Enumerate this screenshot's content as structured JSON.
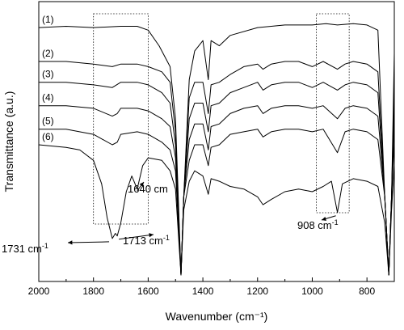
{
  "chart_data": {
    "type": "line",
    "title": "",
    "xlabel": "Wavenumber (cm⁻¹)",
    "ylabel": "Transmittance (a.u.)",
    "xlim": [
      2000,
      700
    ],
    "x_reversed": true,
    "xticks": [
      "2000",
      "1800",
      "1600",
      "1400",
      "1200",
      "1000",
      "800"
    ],
    "y_ticks_shown": false,
    "grid": false,
    "line_color": "#000000",
    "series": [
      {
        "label": "(1)",
        "baseline": 0.95,
        "points": [
          [
            2000,
            0.95
          ],
          [
            1900,
            0.955
          ],
          [
            1800,
            0.95
          ],
          [
            1700,
            0.955
          ],
          [
            1640,
            0.955
          ],
          [
            1600,
            0.94
          ],
          [
            1560,
            0.88
          ],
          [
            1520,
            0.8
          ],
          [
            1500,
            0.6
          ],
          [
            1480,
            0.0
          ],
          [
            1470,
            0.3
          ],
          [
            1450,
            0.75
          ],
          [
            1430,
            0.86
          ],
          [
            1400,
            0.9
          ],
          [
            1380,
            0.75
          ],
          [
            1370,
            0.9
          ],
          [
            1340,
            0.88
          ],
          [
            1300,
            0.92
          ],
          [
            1200,
            0.95
          ],
          [
            1100,
            0.96
          ],
          [
            1000,
            0.96
          ],
          [
            950,
            0.965
          ],
          [
            908,
            0.96
          ],
          [
            850,
            0.965
          ],
          [
            800,
            0.96
          ],
          [
            760,
            0.94
          ],
          [
            735,
            0.3
          ],
          [
            720,
            0.0
          ],
          [
            710,
            0.3
          ],
          [
            700,
            0.85
          ]
        ]
      },
      {
        "label": "(2)",
        "baseline": 0.82,
        "points": [
          [
            2000,
            0.82
          ],
          [
            1900,
            0.82
          ],
          [
            1800,
            0.81
          ],
          [
            1731,
            0.8
          ],
          [
            1700,
            0.81
          ],
          [
            1640,
            0.81
          ],
          [
            1600,
            0.8
          ],
          [
            1550,
            0.78
          ],
          [
            1520,
            0.74
          ],
          [
            1500,
            0.55
          ],
          [
            1480,
            0.0
          ],
          [
            1470,
            0.3
          ],
          [
            1450,
            0.68
          ],
          [
            1430,
            0.74
          ],
          [
            1400,
            0.74
          ],
          [
            1380,
            0.62
          ],
          [
            1370,
            0.73
          ],
          [
            1340,
            0.74
          ],
          [
            1300,
            0.77
          ],
          [
            1250,
            0.8
          ],
          [
            1200,
            0.81
          ],
          [
            1180,
            0.79
          ],
          [
            1150,
            0.81
          ],
          [
            1100,
            0.82
          ],
          [
            1050,
            0.82
          ],
          [
            1000,
            0.8
          ],
          [
            960,
            0.82
          ],
          [
            908,
            0.79
          ],
          [
            880,
            0.81
          ],
          [
            850,
            0.82
          ],
          [
            800,
            0.81
          ],
          [
            760,
            0.78
          ],
          [
            735,
            0.3
          ],
          [
            720,
            0.0
          ],
          [
            710,
            0.3
          ],
          [
            700,
            0.75
          ]
        ]
      },
      {
        "label": "(3)",
        "baseline": 0.74,
        "points": [
          [
            2000,
            0.74
          ],
          [
            1900,
            0.74
          ],
          [
            1800,
            0.73
          ],
          [
            1731,
            0.72
          ],
          [
            1700,
            0.74
          ],
          [
            1640,
            0.74
          ],
          [
            1600,
            0.73
          ],
          [
            1550,
            0.7
          ],
          [
            1520,
            0.66
          ],
          [
            1500,
            0.5
          ],
          [
            1480,
            0.0
          ],
          [
            1470,
            0.3
          ],
          [
            1450,
            0.6
          ],
          [
            1430,
            0.66
          ],
          [
            1400,
            0.66
          ],
          [
            1380,
            0.55
          ],
          [
            1370,
            0.65
          ],
          [
            1340,
            0.66
          ],
          [
            1300,
            0.7
          ],
          [
            1250,
            0.72
          ],
          [
            1200,
            0.74
          ],
          [
            1180,
            0.71
          ],
          [
            1150,
            0.73
          ],
          [
            1100,
            0.74
          ],
          [
            1050,
            0.74
          ],
          [
            1000,
            0.72
          ],
          [
            960,
            0.74
          ],
          [
            908,
            0.71
          ],
          [
            880,
            0.73
          ],
          [
            850,
            0.74
          ],
          [
            800,
            0.73
          ],
          [
            760,
            0.7
          ],
          [
            735,
            0.3
          ],
          [
            720,
            0.0
          ],
          [
            710,
            0.3
          ],
          [
            700,
            0.68
          ]
        ]
      },
      {
        "label": "(4)",
        "baseline": 0.65,
        "points": [
          [
            2000,
            0.65
          ],
          [
            1900,
            0.65
          ],
          [
            1800,
            0.64
          ],
          [
            1731,
            0.61
          ],
          [
            1713,
            0.62
          ],
          [
            1700,
            0.64
          ],
          [
            1640,
            0.64
          ],
          [
            1600,
            0.63
          ],
          [
            1550,
            0.6
          ],
          [
            1520,
            0.57
          ],
          [
            1500,
            0.45
          ],
          [
            1480,
            0.0
          ],
          [
            1470,
            0.3
          ],
          [
            1450,
            0.52
          ],
          [
            1430,
            0.58
          ],
          [
            1400,
            0.58
          ],
          [
            1380,
            0.48
          ],
          [
            1370,
            0.57
          ],
          [
            1340,
            0.58
          ],
          [
            1300,
            0.62
          ],
          [
            1250,
            0.64
          ],
          [
            1200,
            0.65
          ],
          [
            1180,
            0.62
          ],
          [
            1150,
            0.64
          ],
          [
            1100,
            0.65
          ],
          [
            1050,
            0.65
          ],
          [
            1000,
            0.64
          ],
          [
            960,
            0.65
          ],
          [
            908,
            0.6
          ],
          [
            880,
            0.64
          ],
          [
            850,
            0.65
          ],
          [
            800,
            0.64
          ],
          [
            760,
            0.61
          ],
          [
            735,
            0.3
          ],
          [
            720,
            0.0
          ],
          [
            710,
            0.3
          ],
          [
            700,
            0.6
          ]
        ]
      },
      {
        "label": "(5)",
        "baseline": 0.56,
        "points": [
          [
            2000,
            0.56
          ],
          [
            1900,
            0.56
          ],
          [
            1800,
            0.54
          ],
          [
            1731,
            0.5
          ],
          [
            1713,
            0.51
          ],
          [
            1700,
            0.54
          ],
          [
            1640,
            0.55
          ],
          [
            1600,
            0.54
          ],
          [
            1550,
            0.51
          ],
          [
            1520,
            0.48
          ],
          [
            1500,
            0.4
          ],
          [
            1480,
            0.0
          ],
          [
            1470,
            0.3
          ],
          [
            1450,
            0.44
          ],
          [
            1430,
            0.5
          ],
          [
            1400,
            0.5
          ],
          [
            1380,
            0.42
          ],
          [
            1370,
            0.49
          ],
          [
            1340,
            0.5
          ],
          [
            1300,
            0.54
          ],
          [
            1250,
            0.55
          ],
          [
            1200,
            0.56
          ],
          [
            1180,
            0.53
          ],
          [
            1150,
            0.55
          ],
          [
            1100,
            0.56
          ],
          [
            1050,
            0.56
          ],
          [
            1000,
            0.55
          ],
          [
            960,
            0.56
          ],
          [
            908,
            0.47
          ],
          [
            880,
            0.55
          ],
          [
            850,
            0.56
          ],
          [
            800,
            0.55
          ],
          [
            760,
            0.52
          ],
          [
            735,
            0.3
          ],
          [
            720,
            0.0
          ],
          [
            710,
            0.3
          ],
          [
            700,
            0.52
          ]
        ]
      },
      {
        "label": "(6)",
        "baseline": 0.5,
        "points": [
          [
            2000,
            0.5
          ],
          [
            1900,
            0.49
          ],
          [
            1850,
            0.48
          ],
          [
            1800,
            0.44
          ],
          [
            1770,
            0.35
          ],
          [
            1750,
            0.22
          ],
          [
            1731,
            0.14
          ],
          [
            1720,
            0.16
          ],
          [
            1713,
            0.15
          ],
          [
            1700,
            0.2
          ],
          [
            1680,
            0.32
          ],
          [
            1660,
            0.38
          ],
          [
            1640,
            0.33
          ],
          [
            1620,
            0.42
          ],
          [
            1600,
            0.45
          ],
          [
            1550,
            0.44
          ],
          [
            1520,
            0.4
          ],
          [
            1500,
            0.33
          ],
          [
            1480,
            0.0
          ],
          [
            1470,
            0.25
          ],
          [
            1450,
            0.36
          ],
          [
            1430,
            0.4
          ],
          [
            1400,
            0.38
          ],
          [
            1380,
            0.31
          ],
          [
            1370,
            0.37
          ],
          [
            1340,
            0.36
          ],
          [
            1300,
            0.34
          ],
          [
            1250,
            0.33
          ],
          [
            1200,
            0.3
          ],
          [
            1180,
            0.27
          ],
          [
            1150,
            0.29
          ],
          [
            1100,
            0.32
          ],
          [
            1050,
            0.33
          ],
          [
            1000,
            0.32
          ],
          [
            960,
            0.34
          ],
          [
            930,
            0.36
          ],
          [
            908,
            0.24
          ],
          [
            890,
            0.35
          ],
          [
            850,
            0.37
          ],
          [
            800,
            0.36
          ],
          [
            760,
            0.34
          ],
          [
            735,
            0.2
          ],
          [
            720,
            0.0
          ],
          [
            710,
            0.25
          ],
          [
            700,
            0.42
          ]
        ]
      }
    ],
    "annotations": [
      {
        "text": "1731 cm",
        "sup": "-1",
        "arrow_to": [
          1731,
          0.14
        ]
      },
      {
        "text": "1713 cm",
        "sup": "-1",
        "arrow_to": [
          1713,
          0.15
        ]
      },
      {
        "text": "1640 cm",
        "sup": "",
        "arrow_to": [
          1640,
          0.33
        ]
      },
      {
        "text": "908 cm",
        "sup": "-1",
        "arrow_to": [
          908,
          0.24
        ]
      }
    ],
    "highlight_boxes": [
      {
        "x_from": 1800,
        "x_to": 1600
      },
      {
        "x_from": 985,
        "x_to": 865
      }
    ]
  }
}
